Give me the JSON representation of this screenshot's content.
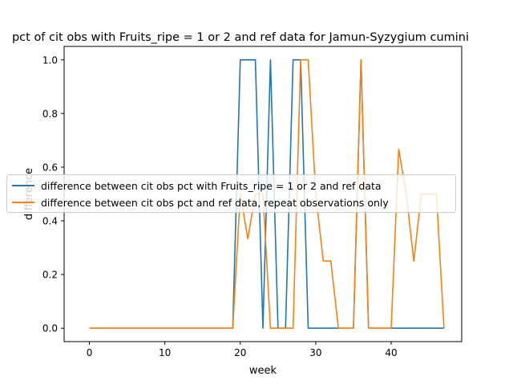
{
  "chart_data": {
    "type": "line",
    "title": "pct of cit obs with Fruits_ripe = 1 or 2 and ref data for Jamun-Syzygium cumini",
    "xlabel": "week",
    "ylabel": "difference",
    "xlim": [
      -3.35,
      49.35
    ],
    "ylim": [
      -0.05,
      1.05
    ],
    "xticks": [
      0,
      10,
      20,
      30,
      40
    ],
    "yticks": [
      0.0,
      0.2,
      0.4,
      0.6,
      0.8,
      1.0
    ],
    "ytick_labels": [
      "0.0",
      "0.2",
      "0.4",
      "0.6",
      "0.8",
      "1.0"
    ],
    "legend_position": "center-left",
    "grid": false,
    "series": [
      {
        "name": "difference between cit obs pct with Fruits_ripe = 1 or 2 and ref data",
        "color": "#1f77b4",
        "x": [
          0,
          1,
          2,
          3,
          4,
          5,
          6,
          7,
          8,
          9,
          10,
          11,
          12,
          13,
          14,
          15,
          16,
          17,
          18,
          19,
          20,
          21,
          22,
          23,
          24,
          25,
          26,
          27,
          28,
          29,
          30,
          31,
          32,
          33,
          34,
          35,
          36,
          37,
          38,
          39,
          40,
          41,
          42,
          43,
          44,
          45,
          46,
          47
        ],
        "y": [
          0,
          0,
          0,
          0,
          0,
          0,
          0,
          0,
          0,
          0,
          0,
          0,
          0,
          0,
          0,
          0,
          0,
          0,
          0,
          0,
          1,
          1,
          1,
          0,
          1,
          0,
          0,
          1,
          1,
          0,
          0,
          0,
          0,
          0,
          0,
          0,
          1,
          0,
          0,
          0,
          0,
          0,
          0,
          0,
          0,
          0,
          0,
          0
        ]
      },
      {
        "name": "difference between cit obs pct and ref data, repeat observations only",
        "color": "#ff7f0e",
        "x": [
          0,
          1,
          2,
          3,
          4,
          5,
          6,
          7,
          8,
          9,
          10,
          11,
          12,
          13,
          14,
          15,
          16,
          17,
          18,
          19,
          20,
          21,
          22,
          23,
          24,
          25,
          26,
          27,
          28,
          29,
          30,
          31,
          32,
          33,
          34,
          35,
          36,
          37,
          38,
          39,
          40,
          41,
          42,
          43,
          44,
          45,
          46,
          47
        ],
        "y": [
          0,
          0,
          0,
          0,
          0,
          0,
          0,
          0,
          0,
          0,
          0,
          0,
          0,
          0,
          0,
          0,
          0,
          0,
          0,
          0,
          0.5,
          0.333,
          0.5,
          0.5,
          0,
          0,
          0,
          0,
          1,
          1,
          0.5,
          0.25,
          0.25,
          0,
          0,
          0,
          1,
          0,
          0,
          0,
          0,
          0.667,
          0.5,
          0.25,
          0.5,
          0.5,
          0.5,
          0
        ]
      }
    ]
  }
}
